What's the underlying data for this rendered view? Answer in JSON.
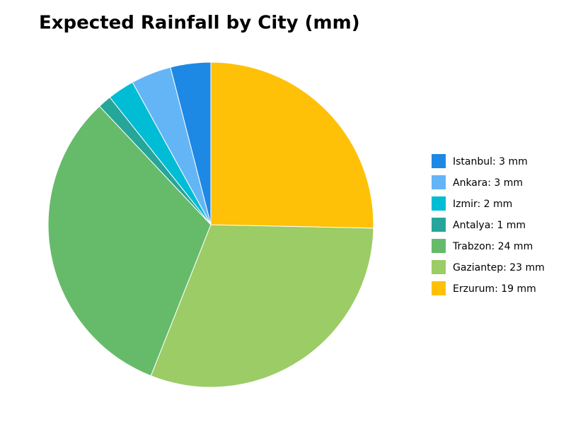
{
  "chart_data": {
    "type": "pie",
    "title": "Expected Rainfall by City (mm)",
    "categories": [
      "Istanbul: 3 mm",
      "Ankara: 3 mm",
      "Izmir: 2 mm",
      "Antalya: 1 mm",
      "Trabzon: 24 mm",
      "Gaziantep: 23 mm",
      "Erzurum: 19 mm"
    ],
    "values": [
      3,
      3,
      2,
      1,
      24,
      23,
      19
    ],
    "colors": [
      "#1e88e5",
      "#64b5f6",
      "#00bcd4",
      "#26a69a",
      "#66bb6a",
      "#9ccc65",
      "#ffc107"
    ],
    "legend": "right"
  }
}
